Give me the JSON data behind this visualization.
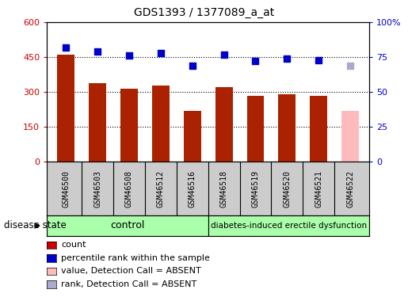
{
  "title": "GDS1393 / 1377089_a_at",
  "samples": [
    "GSM46500",
    "GSM46503",
    "GSM46508",
    "GSM46512",
    "GSM46516",
    "GSM46518",
    "GSM46519",
    "GSM46520",
    "GSM46521",
    "GSM46522"
  ],
  "bar_values": [
    462,
    338,
    315,
    328,
    218,
    320,
    283,
    290,
    283,
    218
  ],
  "bar_colors": [
    "#aa2200",
    "#aa2200",
    "#aa2200",
    "#aa2200",
    "#aa2200",
    "#aa2200",
    "#aa2200",
    "#aa2200",
    "#aa2200",
    "#ffbbbb"
  ],
  "scatter_values": [
    82,
    79,
    76,
    78,
    69,
    77,
    72,
    74,
    73,
    69
  ],
  "scatter_colors": [
    "#0000cc",
    "#0000cc",
    "#0000cc",
    "#0000cc",
    "#0000cc",
    "#0000cc",
    "#0000cc",
    "#0000cc",
    "#0000cc",
    "#aaaacc"
  ],
  "ylim_left": [
    0,
    600
  ],
  "ylim_right": [
    0,
    100
  ],
  "yticks_left": [
    0,
    150,
    300,
    450,
    600
  ],
  "yticks_right": [
    0,
    25,
    50,
    75,
    100
  ],
  "yticklabels_left": [
    "0",
    "150",
    "300",
    "450",
    "600"
  ],
  "yticklabels_right": [
    "0",
    "25",
    "50",
    "75",
    "100%"
  ],
  "control_samples": 5,
  "disease_samples": 5,
  "control_label": "control",
  "disease_label": "diabetes-induced erectile dysfunction",
  "disease_state_label": "disease state",
  "legend_items": [
    {
      "label": "count",
      "color": "#cc0000"
    },
    {
      "label": "percentile rank within the sample",
      "color": "#0000cc"
    },
    {
      "label": "value, Detection Call = ABSENT",
      "color": "#ffbbbb"
    },
    {
      "label": "rank, Detection Call = ABSENT",
      "color": "#aaaacc"
    }
  ],
  "bar_width": 0.55,
  "plot_bg": "#ffffff",
  "label_bg": "#cccccc",
  "group_bg": "#88ee88"
}
